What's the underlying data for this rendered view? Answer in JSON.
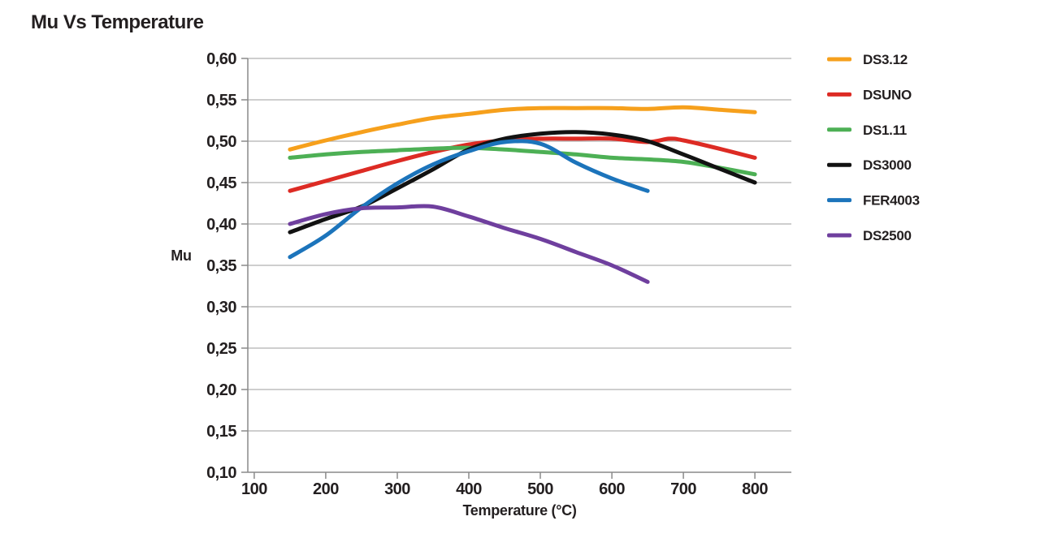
{
  "title": "Mu Vs Temperature",
  "colors": {
    "text": "#231F20",
    "grid": "#B0B0B0",
    "axis": "#8A8A8A"
  },
  "chart_data": {
    "type": "line",
    "title": "Mu Vs Temperature",
    "xlabel": "Temperature (°C)",
    "ylabel": "Mu",
    "xlim": [
      91,
      851
    ],
    "ylim": [
      0.1,
      0.6
    ],
    "grid": "horizontal",
    "legend_position": "right",
    "x_ticks": [
      {
        "value": 100,
        "label": "100"
      },
      {
        "value": 200,
        "label": "200"
      },
      {
        "value": 300,
        "label": "300"
      },
      {
        "value": 400,
        "label": "400"
      },
      {
        "value": 500,
        "label": "500"
      },
      {
        "value": 600,
        "label": "600"
      },
      {
        "value": 700,
        "label": "700"
      },
      {
        "value": 800,
        "label": "800"
      }
    ],
    "y_ticks": [
      {
        "value": 0.6,
        "label": "0,60"
      },
      {
        "value": 0.55,
        "label": "0,55"
      },
      {
        "value": 0.5,
        "label": "0,50"
      },
      {
        "value": 0.45,
        "label": "0,45"
      },
      {
        "value": 0.4,
        "label": "0,40"
      },
      {
        "value": 0.35,
        "label": "0,35"
      },
      {
        "value": 0.3,
        "label": "0,30"
      },
      {
        "value": 0.25,
        "label": "0,25"
      },
      {
        "value": 0.2,
        "label": "0,20"
      },
      {
        "value": 0.15,
        "label": "0,15"
      },
      {
        "value": 0.1,
        "label": "0,10"
      }
    ],
    "series": [
      {
        "name": "DS3.12",
        "color": "#F6A01C",
        "x": [
          150,
          200,
          250,
          300,
          350,
          400,
          450,
          500,
          550,
          600,
          650,
          700,
          750,
          800
        ],
        "y": [
          0.49,
          0.501,
          0.511,
          0.52,
          0.528,
          0.533,
          0.538,
          0.54,
          0.54,
          0.54,
          0.539,
          0.541,
          0.538,
          0.535
        ]
      },
      {
        "name": "DSUNO",
        "color": "#DD2B24",
        "x": [
          150,
          200,
          250,
          300,
          350,
          400,
          450,
          500,
          550,
          600,
          650,
          680,
          700,
          750,
          800
        ],
        "y": [
          0.44,
          0.452,
          0.464,
          0.476,
          0.487,
          0.496,
          0.501,
          0.503,
          0.503,
          0.503,
          0.499,
          0.503,
          0.501,
          0.491,
          0.48
        ]
      },
      {
        "name": "DS1.11",
        "color": "#4DB055",
        "x": [
          150,
          200,
          250,
          300,
          350,
          400,
          450,
          500,
          550,
          600,
          650,
          700,
          750,
          800
        ],
        "y": [
          0.48,
          0.484,
          0.487,
          0.489,
          0.491,
          0.492,
          0.49,
          0.487,
          0.484,
          0.48,
          0.478,
          0.475,
          0.468,
          0.46
        ]
      },
      {
        "name": "DS3000",
        "color": "#121212",
        "x": [
          150,
          200,
          250,
          300,
          350,
          400,
          450,
          500,
          550,
          600,
          650,
          700,
          750,
          800
        ],
        "y": [
          0.39,
          0.406,
          0.421,
          0.443,
          0.466,
          0.49,
          0.503,
          0.509,
          0.511,
          0.508,
          0.5,
          0.484,
          0.467,
          0.45
        ]
      },
      {
        "name": "FER4003",
        "color": "#1C74BB",
        "x": [
          150,
          200,
          250,
          300,
          350,
          400,
          450,
          500,
          550,
          600,
          650
        ],
        "y": [
          0.36,
          0.386,
          0.42,
          0.449,
          0.472,
          0.488,
          0.499,
          0.497,
          0.474,
          0.455,
          0.44
        ]
      },
      {
        "name": "DS2500",
        "color": "#6F3F9E",
        "x": [
          150,
          200,
          250,
          300,
          350,
          400,
          450,
          500,
          550,
          600,
          650
        ],
        "y": [
          0.4,
          0.412,
          0.419,
          0.42,
          0.421,
          0.409,
          0.395,
          0.382,
          0.366,
          0.35,
          0.33
        ]
      }
    ]
  }
}
